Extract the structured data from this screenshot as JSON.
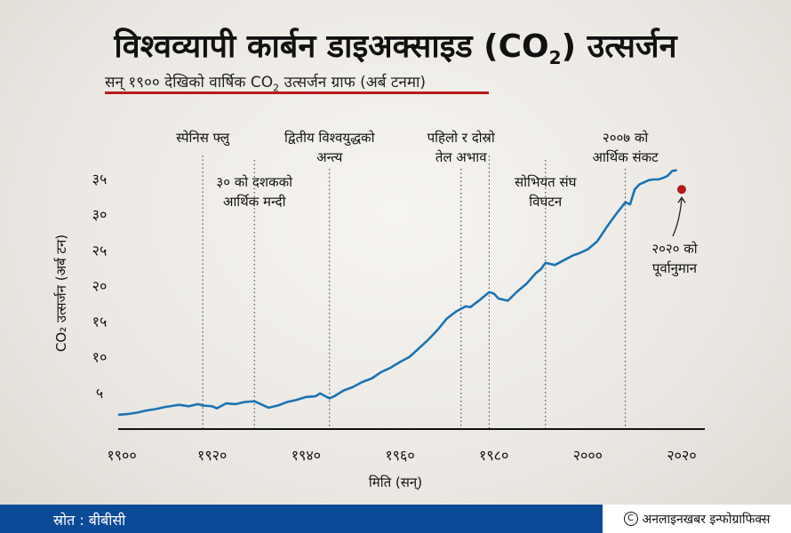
{
  "header": {
    "title_main": "विश्वव्यापी कार्बन डाइअक्साइड (CO",
    "title_sub": "2",
    "title_end": ") उत्सर्जन",
    "subtitle_main": "सन् १९०० देखिको वार्षिक CO",
    "subtitle_sub": "2",
    "subtitle_end": " उत्सर्जन ग्राफ (अर्ब टनमा)"
  },
  "footer": {
    "source": "स्रोत : बीबीसी",
    "credit": "अनलाइनखबर इन्फोग्राफिक्स"
  },
  "colors": {
    "line": "#1a73b3",
    "forecast": "#b31b1b",
    "title_rule": "#b51c1c",
    "footer": "#0b4a96"
  },
  "chart_data": {
    "type": "line",
    "xlabel": "मिति (सन्)",
    "ylabel": "CO₂ उत्सर्जन (अर्ब टन)",
    "xlim": [
      1900,
      2020
    ],
    "ylim": [
      0,
      36
    ],
    "xticks": [
      {
        "value": 1900,
        "label": "१९००"
      },
      {
        "value": 1920,
        "label": "१९२०"
      },
      {
        "value": 1940,
        "label": "१९४०"
      },
      {
        "value": 1960,
        "label": "१९६०"
      },
      {
        "value": 1980,
        "label": "१९८०"
      },
      {
        "value": 2000,
        "label": "२०००"
      },
      {
        "value": 2020,
        "label": "२०२०"
      }
    ],
    "yticks": [
      {
        "value": 5,
        "label": "५"
      },
      {
        "value": 10,
        "label": "१०"
      },
      {
        "value": 15,
        "label": "१५"
      },
      {
        "value": 20,
        "label": "२०"
      },
      {
        "value": 25,
        "label": "२५"
      },
      {
        "value": 30,
        "label": "३०"
      },
      {
        "value": 35,
        "label": "३५"
      }
    ],
    "series": [
      {
        "x": [
          1900,
          1902,
          1904,
          1906,
          1908,
          1910,
          1912,
          1913,
          1915,
          1917,
          1918,
          1920,
          1921,
          1923,
          1925,
          1927,
          1929,
          1930,
          1932,
          1934,
          1936,
          1938,
          1940,
          1942,
          1943,
          1945,
          1946,
          1948,
          1950,
          1952,
          1954,
          1956,
          1958,
          1960,
          1962,
          1964,
          1966,
          1968,
          1970,
          1972,
          1974,
          1975,
          1977,
          1979,
          1980,
          1981,
          1983,
          1985,
          1987,
          1989,
          1990,
          1991,
          1993,
          1995,
          1997,
          1998,
          2000,
          2002,
          2004,
          2006,
          2008,
          2009,
          2010,
          2011,
          2012,
          2013,
          2014,
          2015,
          2016,
          2017,
          2018,
          2019
        ],
        "y": [
          2.0,
          2.1,
          2.3,
          2.6,
          2.8,
          3.1,
          3.3,
          3.4,
          3.2,
          3.5,
          3.3,
          3.2,
          2.9,
          3.6,
          3.5,
          3.8,
          3.9,
          3.6,
          3.0,
          3.3,
          3.8,
          4.1,
          4.5,
          4.6,
          5.0,
          4.3,
          4.6,
          5.4,
          5.9,
          6.6,
          7.1,
          8.0,
          8.6,
          9.4,
          10.1,
          11.3,
          12.5,
          13.9,
          15.5,
          16.5,
          17.2,
          17.1,
          18.1,
          19.2,
          19.0,
          18.3,
          18.0,
          19.3,
          20.4,
          21.9,
          22.4,
          23.3,
          23.0,
          23.7,
          24.4,
          24.6,
          25.2,
          26.3,
          28.3,
          30.1,
          31.8,
          31.5,
          33.6,
          34.3,
          34.6,
          34.9,
          35.0,
          35.0,
          35.2,
          35.5,
          36.2,
          36.3
        ]
      }
    ],
    "forecast": {
      "x": 2020,
      "y": 33.6,
      "label_line1": "२०२० को",
      "label_line2": "पूर्वानुमान"
    },
    "events": [
      {
        "x": 1918,
        "lines": [
          "स्पेनिस फ्लु"
        ]
      },
      {
        "x": 1929,
        "lines": [
          "३० को दशकको",
          "आर्थिक मन्दी"
        ]
      },
      {
        "x": 1945,
        "lines": [
          "द्वितीय विश्वयुद्धको",
          "अन्त्य"
        ]
      },
      {
        "x": 1973,
        "lines": [
          "पहिलो र दोस्रो",
          "तेल अभाव"
        ]
      },
      {
        "x": 1979,
        "lines": []
      },
      {
        "x": 1991,
        "lines": [
          "सोभियत संघ",
          "विघटन"
        ]
      },
      {
        "x": 2008,
        "lines": [
          "२००७ को",
          "आर्थिक संकट"
        ]
      }
    ]
  }
}
